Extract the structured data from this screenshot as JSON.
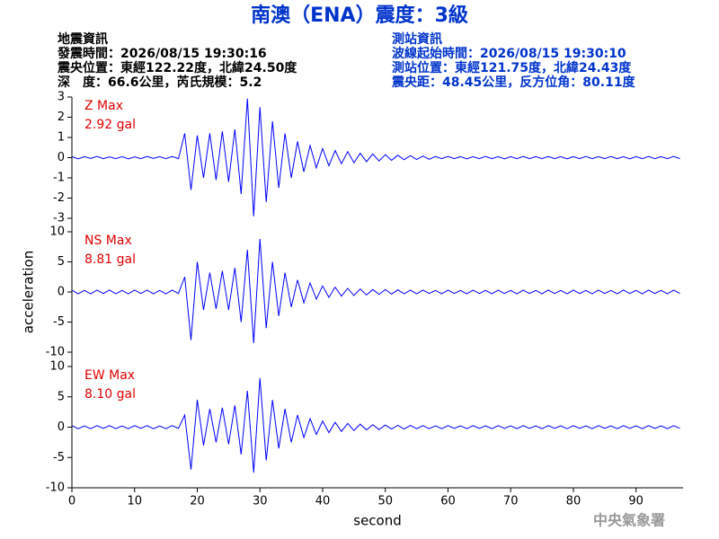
{
  "title": "南澳（ENA）震度：3級",
  "event_info": [
    "地震資訊",
    "發震時間：2026/08/15 19:30:16",
    "震央位置：東經122.22度，北緯24.50度",
    "深　度：66.6公里，芮氏規模：5.2"
  ],
  "station_info": [
    "測站資訊",
    "波線起始時間：2026/08/15 19:30:10",
    "測站位置：東經121.75度，北緯24.43度",
    "震央距：48.45公里，反方位角：80.11度"
  ],
  "credit": "中央氣象署",
  "chart_data": [
    {
      "type": "line",
      "annotations": [
        "Z Max",
        "2.92 gal"
      ],
      "ylim": [
        -3,
        3
      ],
      "yticks": [
        -3,
        -2,
        -1,
        0,
        1,
        2,
        3
      ],
      "xlim": [
        0,
        97.5
      ],
      "x": [
        0,
        1,
        2,
        3,
        4,
        5,
        6,
        7,
        8,
        9,
        10,
        11,
        12,
        13,
        14,
        15,
        16,
        17,
        18,
        19,
        20,
        21,
        22,
        23,
        24,
        25,
        26,
        27,
        28,
        29,
        30,
        31,
        32,
        33,
        34,
        35,
        36,
        37,
        38,
        39,
        40,
        41,
        42,
        43,
        44,
        45,
        46,
        47,
        48,
        49,
        50,
        51,
        52,
        53,
        54,
        55,
        56,
        57,
        58,
        59,
        60,
        61,
        62,
        63,
        64,
        65,
        66,
        67,
        68,
        69,
        70,
        71,
        72,
        73,
        74,
        75,
        76,
        77,
        78,
        79,
        80,
        81,
        82,
        83,
        84,
        85,
        86,
        87,
        88,
        89,
        90,
        91,
        92,
        93,
        94,
        95,
        96,
        97
      ],
      "series": [
        {
          "color": "#0000ff",
          "values": [
            0.05,
            -0.06,
            0.05,
            -0.04,
            0.06,
            -0.05,
            0.04,
            -0.05,
            0.05,
            -0.06,
            0.04,
            -0.05,
            0.06,
            -0.04,
            0.05,
            -0.05,
            0.06,
            -0.05,
            1.2,
            -1.6,
            1.1,
            -1.0,
            1.2,
            -1.1,
            1.3,
            -1.2,
            1.4,
            -1.8,
            2.92,
            -2.9,
            2.5,
            -2.2,
            1.8,
            -1.5,
            1.2,
            -1.0,
            0.8,
            -0.7,
            0.6,
            -0.5,
            0.45,
            -0.4,
            0.35,
            -0.3,
            0.3,
            -0.25,
            0.22,
            -0.2,
            0.18,
            -0.16,
            0.15,
            -0.13,
            0.12,
            -0.1,
            0.1,
            -0.09,
            0.08,
            -0.08,
            0.06,
            -0.05,
            0.06,
            -0.05,
            0.05,
            -0.06,
            0.05,
            -0.05,
            0.06,
            -0.05,
            0.05,
            -0.06,
            0.05,
            -0.05,
            0.06,
            -0.05,
            0.05,
            -0.05,
            0.06,
            -0.05,
            0.05,
            -0.06,
            0.05,
            -0.05,
            0.06,
            -0.05,
            0.05,
            -0.05,
            0.06,
            -0.05,
            0.05,
            -0.06,
            0.05,
            -0.05,
            0.06,
            -0.05,
            0.05,
            -0.05,
            0.06,
            -0.05
          ]
        }
      ]
    },
    {
      "type": "line",
      "annotations": [
        "NS Max",
        "8.81 gal"
      ],
      "ylabel": "acceleration",
      "ylim": [
        -10,
        10
      ],
      "yticks": [
        -10,
        -5,
        0,
        5,
        10
      ],
      "xlim": [
        0,
        97.5
      ],
      "x": [
        0,
        1,
        2,
        3,
        4,
        5,
        6,
        7,
        8,
        9,
        10,
        11,
        12,
        13,
        14,
        15,
        16,
        17,
        18,
        19,
        20,
        21,
        22,
        23,
        24,
        25,
        26,
        27,
        28,
        29,
        30,
        31,
        32,
        33,
        34,
        35,
        36,
        37,
        38,
        39,
        40,
        41,
        42,
        43,
        44,
        45,
        46,
        47,
        48,
        49,
        50,
        51,
        52,
        53,
        54,
        55,
        56,
        57,
        58,
        59,
        60,
        61,
        62,
        63,
        64,
        65,
        66,
        67,
        68,
        69,
        70,
        71,
        72,
        73,
        74,
        75,
        76,
        77,
        78,
        79,
        80,
        81,
        82,
        83,
        84,
        85,
        86,
        87,
        88,
        89,
        90,
        91,
        92,
        93,
        94,
        95,
        96,
        97
      ],
      "series": [
        {
          "color": "#0000ff",
          "values": [
            0.3,
            -0.3,
            0.25,
            -0.3,
            0.3,
            -0.25,
            0.3,
            -0.3,
            0.25,
            -0.3,
            0.3,
            -0.25,
            0.3,
            -0.3,
            0.25,
            -0.3,
            0.3,
            -0.25,
            2.5,
            -8.0,
            5.0,
            -3.0,
            3.2,
            -2.8,
            3.5,
            -3.0,
            4.0,
            -5.0,
            7.0,
            -8.5,
            8.81,
            -6.0,
            5.0,
            -4.0,
            3.2,
            -2.5,
            2.0,
            -1.8,
            1.5,
            -1.2,
            1.0,
            -0.9,
            0.8,
            -0.7,
            0.6,
            -0.6,
            0.5,
            -0.5,
            0.4,
            -0.4,
            0.4,
            -0.35,
            0.35,
            -0.3,
            0.3,
            -0.3,
            0.3,
            -0.25,
            0.25,
            -0.3,
            0.3,
            -0.25,
            0.25,
            -0.3,
            0.3,
            -0.25,
            0.25,
            -0.3,
            0.3,
            -0.25,
            0.25,
            -0.3,
            0.3,
            -0.25,
            0.25,
            -0.3,
            0.3,
            -0.25,
            0.25,
            -0.3,
            0.3,
            -0.25,
            0.25,
            -0.3,
            0.3,
            -0.25,
            0.25,
            -0.3,
            0.3,
            -0.25,
            0.25,
            -0.3,
            0.3,
            -0.25,
            0.25,
            -0.3,
            0.3,
            -0.25
          ]
        }
      ]
    },
    {
      "type": "line",
      "annotations": [
        "EW Max",
        "8.10 gal"
      ],
      "xlabel": "second",
      "ylim": [
        -10,
        10
      ],
      "yticks": [
        -10,
        -5,
        0,
        5,
        10
      ],
      "xlim": [
        0,
        97.5
      ],
      "xticks": [
        0,
        10,
        20,
        30,
        40,
        50,
        60,
        70,
        80,
        90
      ],
      "x": [
        0,
        1,
        2,
        3,
        4,
        5,
        6,
        7,
        8,
        9,
        10,
        11,
        12,
        13,
        14,
        15,
        16,
        17,
        18,
        19,
        20,
        21,
        22,
        23,
        24,
        25,
        26,
        27,
        28,
        29,
        30,
        31,
        32,
        33,
        34,
        35,
        36,
        37,
        38,
        39,
        40,
        41,
        42,
        43,
        44,
        45,
        46,
        47,
        48,
        49,
        50,
        51,
        52,
        53,
        54,
        55,
        56,
        57,
        58,
        59,
        60,
        61,
        62,
        63,
        64,
        65,
        66,
        67,
        68,
        69,
        70,
        71,
        72,
        73,
        74,
        75,
        76,
        77,
        78,
        79,
        80,
        81,
        82,
        83,
        84,
        85,
        86,
        87,
        88,
        89,
        90,
        91,
        92,
        93,
        94,
        95,
        96,
        97
      ],
      "series": [
        {
          "color": "#0000ff",
          "values": [
            0.25,
            -0.25,
            0.2,
            -0.25,
            0.25,
            -0.2,
            0.25,
            -0.25,
            0.2,
            -0.25,
            0.25,
            -0.2,
            0.25,
            -0.25,
            0.2,
            -0.25,
            0.25,
            -0.2,
            2.0,
            -7.0,
            4.5,
            -3.0,
            3.0,
            -2.5,
            3.2,
            -2.8,
            3.6,
            -4.5,
            6.0,
            -7.5,
            8.1,
            -5.5,
            4.5,
            -3.5,
            3.0,
            -2.5,
            2.0,
            -1.7,
            1.4,
            -1.2,
            1.0,
            -0.9,
            0.8,
            -0.7,
            0.6,
            -0.55,
            0.5,
            -0.45,
            0.4,
            -0.4,
            0.35,
            -0.3,
            0.3,
            -0.3,
            0.28,
            -0.25,
            0.25,
            -0.25,
            0.22,
            -0.25,
            0.25,
            -0.2,
            0.22,
            -0.25,
            0.25,
            -0.2,
            0.22,
            -0.25,
            0.25,
            -0.2,
            0.22,
            -0.25,
            0.25,
            -0.2,
            0.22,
            -0.25,
            0.25,
            -0.2,
            0.22,
            -0.25,
            0.25,
            -0.2,
            0.22,
            -0.25,
            0.25,
            -0.2,
            0.22,
            -0.25,
            0.25,
            -0.2,
            0.22,
            -0.25,
            0.25,
            -0.2,
            0.22,
            -0.25,
            0.25,
            -0.2
          ]
        }
      ]
    }
  ]
}
